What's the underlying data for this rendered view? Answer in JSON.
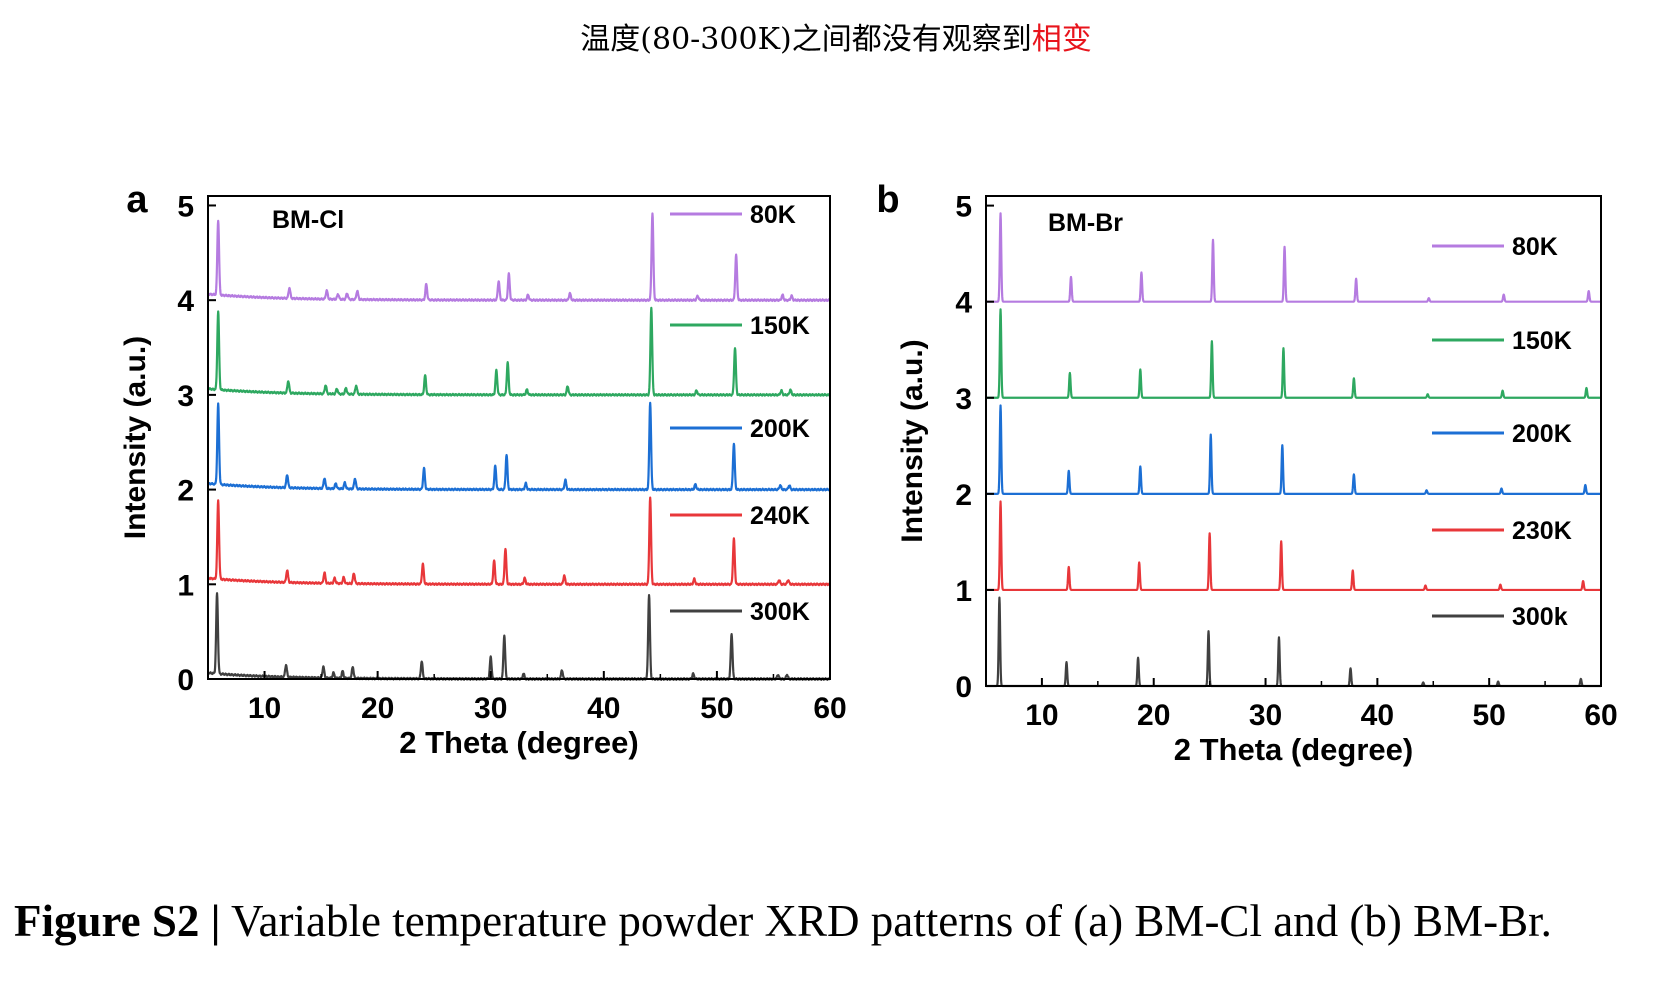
{
  "header_note": {
    "text": "温度(80-300K)之间都没有观察到",
    "highlight": "相变",
    "highlight_color": "#e8141c"
  },
  "caption": {
    "label": "Figure S2 |",
    "text": " Variable temperature powder XRD patterns of (a) BM-Cl and (b) BM-Br."
  },
  "chart_data": [
    {
      "type": "line",
      "panel_label": "a",
      "sample": "BM-Cl",
      "xlabel": "2 Theta (degree)",
      "ylabel": "Intensity (a.u.)",
      "xlim": [
        5,
        60
      ],
      "ylim": [
        0,
        5.1
      ],
      "xticks": [
        10,
        20,
        30,
        40,
        50,
        60
      ],
      "yticks": [
        0,
        1,
        2,
        3,
        4,
        5
      ],
      "legend_position": "right",
      "series": [
        {
          "name": "80K",
          "color": "#b57be0",
          "offset": 4.0,
          "peaks": [
            [
              5.9,
              0.86
            ],
            [
              12.2,
              0.12
            ],
            [
              15.5,
              0.1
            ],
            [
              16.5,
              0.06
            ],
            [
              17.3,
              0.07
            ],
            [
              18.2,
              0.1
            ],
            [
              24.3,
              0.18
            ],
            [
              30.7,
              0.22
            ],
            [
              31.6,
              0.3
            ],
            [
              33.3,
              0.06
            ],
            [
              37.0,
              0.08
            ],
            [
              44.3,
              1.0
            ],
            [
              48.3,
              0.05
            ],
            [
              51.7,
              0.52
            ],
            [
              55.8,
              0.06
            ],
            [
              56.6,
              0.05
            ]
          ]
        },
        {
          "name": "150K",
          "color": "#2ea860",
          "offset": 3.0,
          "peaks": [
            [
              5.9,
              0.9
            ],
            [
              12.1,
              0.14
            ],
            [
              15.4,
              0.1
            ],
            [
              16.4,
              0.06
            ],
            [
              17.2,
              0.07
            ],
            [
              18.1,
              0.1
            ],
            [
              24.2,
              0.22
            ],
            [
              30.5,
              0.28
            ],
            [
              31.5,
              0.37
            ],
            [
              33.2,
              0.06
            ],
            [
              36.8,
              0.1
            ],
            [
              44.2,
              1.0
            ],
            [
              48.2,
              0.05
            ],
            [
              51.6,
              0.54
            ],
            [
              55.7,
              0.05
            ],
            [
              56.5,
              0.06
            ]
          ]
        },
        {
          "name": "200K",
          "color": "#1c6fd4",
          "offset": 2.0,
          "peaks": [
            [
              5.9,
              0.92
            ],
            [
              12.0,
              0.15
            ],
            [
              15.3,
              0.12
            ],
            [
              16.3,
              0.06
            ],
            [
              17.1,
              0.07
            ],
            [
              18.0,
              0.12
            ],
            [
              24.1,
              0.24
            ],
            [
              30.4,
              0.27
            ],
            [
              31.4,
              0.4
            ],
            [
              33.1,
              0.07
            ],
            [
              36.6,
              0.11
            ],
            [
              44.1,
              1.0
            ],
            [
              48.1,
              0.06
            ],
            [
              51.5,
              0.53
            ],
            [
              55.6,
              0.05
            ],
            [
              56.4,
              0.05
            ]
          ]
        },
        {
          "name": "240K",
          "color": "#e8373a",
          "offset": 1.0,
          "peaks": [
            [
              5.9,
              0.9
            ],
            [
              12.0,
              0.14
            ],
            [
              15.3,
              0.12
            ],
            [
              16.2,
              0.06
            ],
            [
              17.0,
              0.07
            ],
            [
              17.9,
              0.12
            ],
            [
              24.0,
              0.23
            ],
            [
              30.3,
              0.27
            ],
            [
              31.3,
              0.41
            ],
            [
              33.0,
              0.07
            ],
            [
              36.5,
              0.1
            ],
            [
              44.1,
              1.0
            ],
            [
              48.0,
              0.06
            ],
            [
              51.5,
              0.52
            ],
            [
              55.5,
              0.05
            ],
            [
              56.3,
              0.05
            ]
          ]
        },
        {
          "name": "300K",
          "color": "#404040",
          "offset": 0.0,
          "peaks": [
            [
              5.8,
              0.92
            ],
            [
              11.9,
              0.14
            ],
            [
              15.2,
              0.13
            ],
            [
              16.1,
              0.06
            ],
            [
              16.9,
              0.08
            ],
            [
              17.8,
              0.13
            ],
            [
              23.9,
              0.2
            ],
            [
              30.0,
              0.25
            ],
            [
              31.2,
              0.5
            ],
            [
              32.9,
              0.06
            ],
            [
              36.3,
              0.1
            ],
            [
              44.0,
              0.97
            ],
            [
              47.9,
              0.06
            ],
            [
              51.3,
              0.52
            ],
            [
              55.4,
              0.05
            ],
            [
              56.2,
              0.05
            ]
          ]
        }
      ]
    },
    {
      "type": "line",
      "panel_label": "b",
      "sample": "BM-Br",
      "xlabel": "2 Theta (degree)",
      "ylabel": "Intensity (a.u.)",
      "xlim": [
        5,
        60
      ],
      "ylim": [
        0,
        5.1
      ],
      "xticks": [
        10,
        20,
        30,
        40,
        50,
        60
      ],
      "yticks": [
        0,
        1,
        2,
        3,
        4,
        5
      ],
      "legend_position": "right",
      "series": [
        {
          "name": "80K",
          "color": "#b57be0",
          "offset": 4.0,
          "peaks": [
            [
              6.3,
              1.0
            ],
            [
              12.6,
              0.28
            ],
            [
              18.9,
              0.33
            ],
            [
              25.3,
              0.7
            ],
            [
              31.7,
              0.62
            ],
            [
              38.1,
              0.26
            ],
            [
              44.6,
              0.04
            ],
            [
              51.3,
              0.08
            ],
            [
              58.9,
              0.12
            ]
          ]
        },
        {
          "name": "150K",
          "color": "#2ea860",
          "offset": 3.0,
          "peaks": [
            [
              6.3,
              1.0
            ],
            [
              12.5,
              0.28
            ],
            [
              18.8,
              0.32
            ],
            [
              25.2,
              0.64
            ],
            [
              31.6,
              0.56
            ],
            [
              37.9,
              0.22
            ],
            [
              44.5,
              0.04
            ],
            [
              51.2,
              0.08
            ],
            [
              58.7,
              0.11
            ]
          ]
        },
        {
          "name": "200K",
          "color": "#1c6fd4",
          "offset": 2.0,
          "peaks": [
            [
              6.3,
              1.0
            ],
            [
              12.4,
              0.26
            ],
            [
              18.8,
              0.31
            ],
            [
              25.1,
              0.67
            ],
            [
              31.5,
              0.55
            ],
            [
              37.9,
              0.22
            ],
            [
              44.4,
              0.04
            ],
            [
              51.1,
              0.06
            ],
            [
              58.6,
              0.1
            ]
          ]
        },
        {
          "name": "230K",
          "color": "#e8373a",
          "offset": 1.0,
          "peaks": [
            [
              6.3,
              1.0
            ],
            [
              12.4,
              0.26
            ],
            [
              18.7,
              0.31
            ],
            [
              25.0,
              0.64
            ],
            [
              31.4,
              0.55
            ],
            [
              37.8,
              0.22
            ],
            [
              44.3,
              0.05
            ],
            [
              51.0,
              0.06
            ],
            [
              58.4,
              0.1
            ]
          ]
        },
        {
          "name": "300k",
          "color": "#404040",
          "offset": 0.0,
          "peaks": [
            [
              6.2,
              1.0
            ],
            [
              12.2,
              0.27
            ],
            [
              18.6,
              0.32
            ],
            [
              24.9,
              0.62
            ],
            [
              31.2,
              0.55
            ],
            [
              37.6,
              0.2
            ],
            [
              44.1,
              0.04
            ],
            [
              50.8,
              0.05
            ],
            [
              58.2,
              0.08
            ]
          ]
        }
      ]
    }
  ]
}
